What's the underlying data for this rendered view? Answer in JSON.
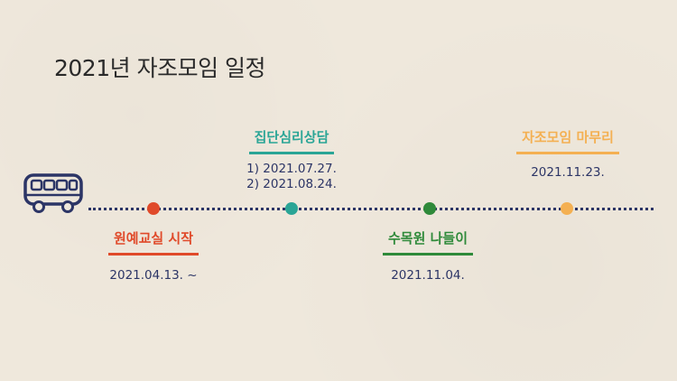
{
  "title": "2021년 자조모임 일정",
  "colors": {
    "navy": "#2c3566",
    "red": "#e04a2a",
    "teal": "#2aa596",
    "green": "#2f8a3a",
    "orange": "#f4b052"
  },
  "icons": {
    "vehicle": "bus-icon"
  },
  "events": [
    {
      "label": "원예교실 시작",
      "dates": [
        "2021.04.13. ~"
      ]
    },
    {
      "label": "집단심리상담",
      "dates": [
        "1) 2021.07.27.",
        "2) 2021.08.24."
      ]
    },
    {
      "label": "수목원 나들이",
      "dates": [
        "2021.11.04."
      ]
    },
    {
      "label": "자조모임 마무리",
      "dates": [
        "2021.11.23."
      ]
    }
  ]
}
